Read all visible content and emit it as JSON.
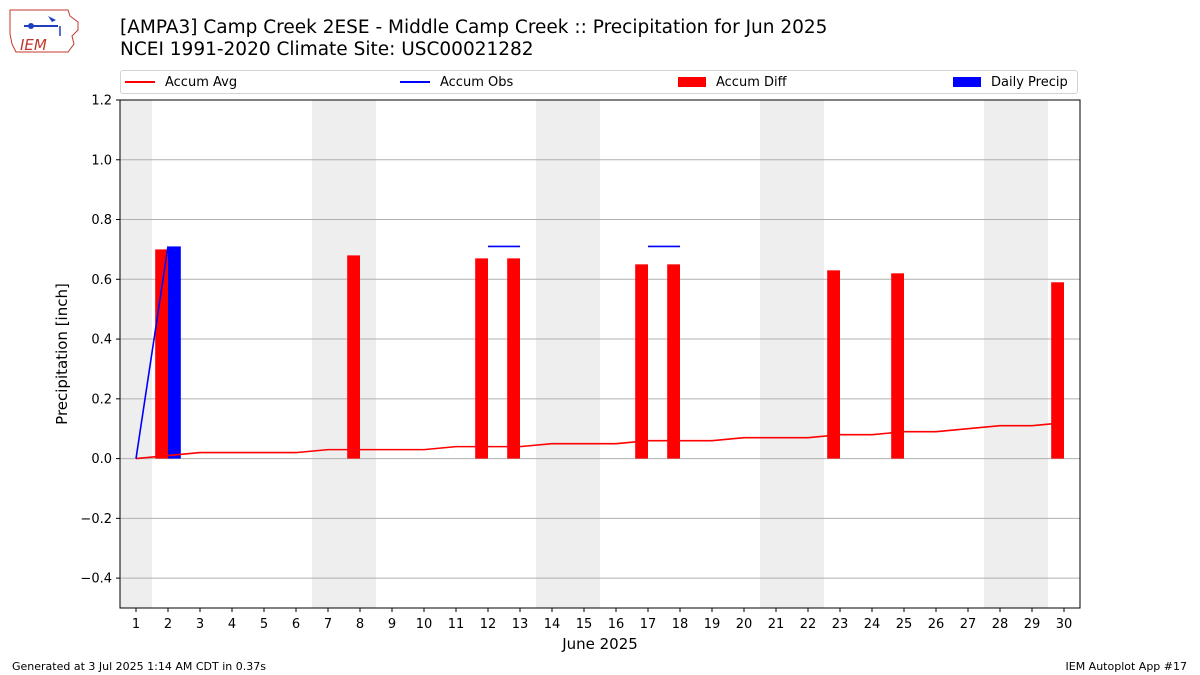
{
  "title_line1": "[AMPA3] Camp Creek 2ESE - Middle Camp Creek :: Precipitation for Jun 2025",
  "title_line2": "NCEI 1991-2020 Climate Site: USC00021282",
  "logo_text": "IEM",
  "footer_left": "Generated at 3 Jul 2025 1:14 AM CDT in 0.37s",
  "footer_right": "IEM Autoplot App #17",
  "colors": {
    "accum_avg": "#ff0000",
    "accum_obs": "#0000ff",
    "accum_diff": "#ff0000",
    "daily_precip": "#0000ff",
    "weekend_shade": "#eeeeee",
    "grid": "#b0b0b0"
  },
  "legend": [
    {
      "label": "Accum Avg",
      "kind": "line",
      "color": "#ff0000"
    },
    {
      "label": "Accum Obs",
      "kind": "line",
      "color": "#0000ff"
    },
    {
      "label": "Accum Diff",
      "kind": "bar",
      "color": "#ff0000"
    },
    {
      "label": "Daily Precip",
      "kind": "bar",
      "color": "#0000ff"
    }
  ],
  "chart_data": {
    "type": "bar",
    "xlabel": "June 2025",
    "ylabel": "Precipitation [inch]",
    "xlim": [
      0.5,
      30.5
    ],
    "ylim": [
      -0.5,
      1.2
    ],
    "yticks": [
      -0.4,
      -0.2,
      0.0,
      0.2,
      0.4,
      0.6,
      0.8,
      1.0,
      1.2
    ],
    "ytick_labels": [
      "−0.4",
      "−0.2",
      "0.0",
      "0.2",
      "0.4",
      "0.6",
      "0.8",
      "1.0",
      "1.2"
    ],
    "xticks": [
      1,
      2,
      3,
      4,
      5,
      6,
      7,
      8,
      9,
      10,
      11,
      12,
      13,
      14,
      15,
      16,
      17,
      18,
      19,
      20,
      21,
      22,
      23,
      24,
      25,
      26,
      27,
      28,
      29,
      30
    ],
    "grid": "horizontal",
    "legend_position": "top",
    "weekend_shaded_days": [
      1,
      7,
      8,
      14,
      15,
      21,
      22,
      28,
      29
    ],
    "series": [
      {
        "name": "Accum Avg",
        "kind": "line",
        "x": [
          1,
          2,
          3,
          4,
          5,
          6,
          7,
          8,
          9,
          10,
          11,
          12,
          13,
          14,
          15,
          16,
          17,
          18,
          19,
          20,
          21,
          22,
          23,
          24,
          25,
          26,
          27,
          28,
          29,
          30
        ],
        "values": [
          0.0,
          0.01,
          0.02,
          0.02,
          0.02,
          0.02,
          0.03,
          0.03,
          0.03,
          0.03,
          0.04,
          0.04,
          0.04,
          0.05,
          0.05,
          0.05,
          0.06,
          0.06,
          0.06,
          0.07,
          0.07,
          0.07,
          0.08,
          0.08,
          0.09,
          0.09,
          0.1,
          0.11,
          0.11,
          0.12
        ]
      },
      {
        "name": "Accum Obs",
        "kind": "line",
        "segments": [
          {
            "x": [
              1,
              2
            ],
            "values": [
              0.0,
              0.71
            ]
          },
          {
            "x": [
              12,
              13
            ],
            "values": [
              0.71,
              0.71
            ]
          },
          {
            "x": [
              17,
              18
            ],
            "values": [
              0.71,
              0.71
            ]
          }
        ]
      },
      {
        "name": "Accum Diff",
        "kind": "bar",
        "x": [
          2,
          8,
          12,
          13,
          17,
          18,
          23,
          25,
          30
        ],
        "values": [
          0.7,
          0.68,
          0.67,
          0.67,
          0.65,
          0.65,
          0.63,
          0.62,
          0.59
        ]
      },
      {
        "name": "Daily Precip",
        "kind": "bar",
        "x": [
          2
        ],
        "values": [
          0.71
        ]
      }
    ]
  }
}
